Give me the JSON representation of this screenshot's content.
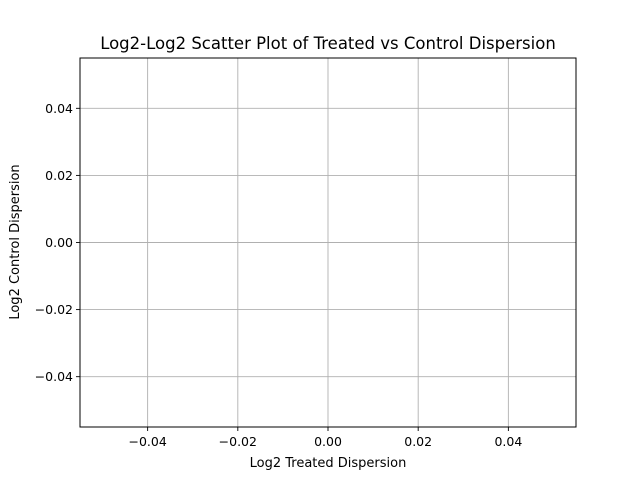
{
  "chart_data": {
    "type": "scatter",
    "title": "Log2-Log2 Scatter Plot of Treated vs Control Dispersion",
    "xlabel": "Log2 Treated Dispersion",
    "ylabel": "Log2 Control Dispersion",
    "xlim": [
      -0.055,
      0.055
    ],
    "ylim": [
      -0.055,
      0.055
    ],
    "xticks": [
      -0.04,
      -0.02,
      0.0,
      0.02,
      0.04
    ],
    "yticks": [
      -0.04,
      -0.02,
      0.0,
      0.02,
      0.04
    ],
    "xtick_labels": [
      "−0.04",
      "−0.02",
      "0.00",
      "0.02",
      "0.04"
    ],
    "ytick_labels": [
      "−0.04",
      "−0.02",
      "0.00",
      "0.02",
      "0.04"
    ],
    "grid": true,
    "points": []
  }
}
